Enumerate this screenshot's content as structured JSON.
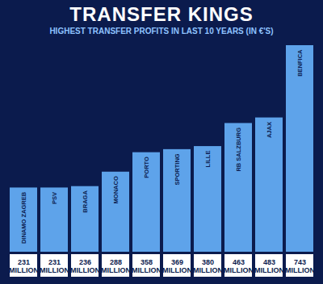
{
  "chart_data": {
    "type": "bar",
    "title": "TRANSFER KINGS",
    "subtitle": "HIGHEST TRANSFER PROFITS IN LAST 10 YEARS (IN €'S)",
    "categories": [
      "DINAMO ZAGREB",
      "PSV",
      "BRAGA",
      "MONACO",
      "PORTO",
      "SPORTING",
      "LILLE",
      "RB SALZBURG",
      "AJAX",
      "BENFICA"
    ],
    "values": [
      231,
      231,
      236,
      288,
      358,
      369,
      380,
      463,
      483,
      743
    ],
    "value_labels": [
      "231 MILLION",
      "231 MILLION",
      "236 MILLION",
      "288 MILLION",
      "358 MILLION",
      "369 MILLION",
      "380 MILLION",
      "463 MILLION",
      "483 MILLION",
      "743 MILLION"
    ],
    "color": "#5ea3ea",
    "ylim": [
      0,
      743
    ],
    "data_labels": true,
    "tick_labels": false
  }
}
